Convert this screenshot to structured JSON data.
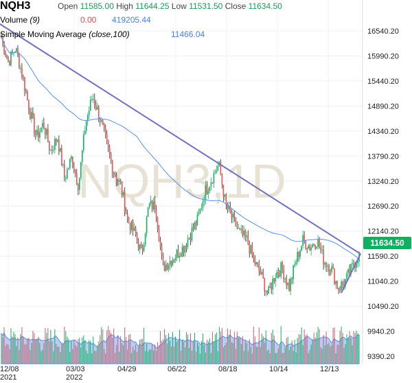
{
  "header": {
    "symbol": "NQH3",
    "open_label": "Open",
    "open": "11585.00",
    "high_label": "High",
    "high": "11644.25",
    "low_label": "Low",
    "low": "11531.50",
    "close_label": "Close",
    "close": "11634.50",
    "volume_label": "Volume",
    "volume_param": "(9)",
    "volume_val1": "0.00",
    "volume_val2": "419205.44",
    "sma_label": "Simple Moving Average",
    "sma_param": "(close,100)",
    "sma_val": "11466.04"
  },
  "watermark": "NQH3,1D",
  "last_price": "11634.50",
  "colors": {
    "up": "#10b060",
    "down": "#f05050",
    "sma": "#5590f0",
    "trend": "#7070c0",
    "volume_area": "#b8cdf5"
  },
  "chart_data": {
    "type": "candlestick",
    "title": "NQH3",
    "y_ticks": [
      "16540.20",
      "15990.20",
      "15440.20",
      "14890.20",
      "14340.20",
      "13790.20",
      "13240.20",
      "12690.20",
      "12140.20",
      "11590.20",
      "11040.20",
      "10490.20",
      "9940.20",
      "9390.20"
    ],
    "x_ticks": [
      {
        "label": "12/08",
        "sub": "2021"
      },
      {
        "label": "03/03",
        "sub": "2022"
      },
      {
        "label": "04/29",
        "sub": ""
      },
      {
        "label": "06/22",
        "sub": ""
      },
      {
        "label": "08/18",
        "sub": ""
      },
      {
        "label": "10/14",
        "sub": ""
      },
      {
        "label": "12/13",
        "sub": ""
      }
    ],
    "approx_closes": [
      16389,
      15862,
      16163,
      15560,
      14806,
      14203,
      14505,
      13901,
      14203,
      13298,
      13750,
      13147,
      14505,
      15108,
      14655,
      14052,
      13449,
      13147,
      12393,
      12092,
      11639,
      12695,
      12695,
      11337,
      11488,
      11639,
      11790,
      12092,
      12393,
      12996,
      13298,
      13599,
      12695,
      12393,
      12092,
      11940,
      11488,
      11186,
      10734,
      11186,
      11337,
      10885,
      11488,
      11940,
      11790,
      11940,
      11488,
      11337,
      10885,
      11035,
      11337,
      11634
    ],
    "trendline": {
      "start": 16691,
      "end": 11640
    },
    "sma_period": 100
  }
}
